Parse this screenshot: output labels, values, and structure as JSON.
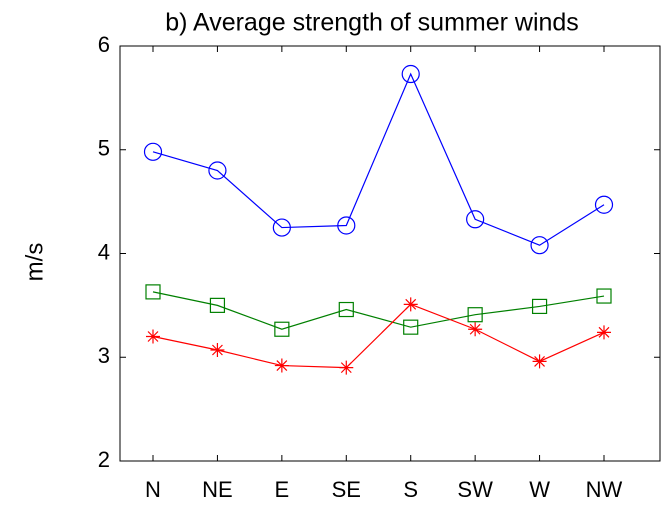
{
  "chart_data": {
    "type": "line",
    "title": "b) Average strength of summer winds",
    "y_label": "m/s",
    "categories": [
      "N",
      "NE",
      "E",
      "SE",
      "S",
      "SW",
      "W",
      "NW"
    ],
    "series": [
      {
        "color": "#0000ff",
        "marker": "circle",
        "values": [
          4.98,
          4.8,
          4.25,
          4.27,
          5.73,
          4.33,
          4.08,
          4.47
        ]
      },
      {
        "color": "#008000",
        "marker": "square",
        "values": [
          3.63,
          3.5,
          3.27,
          3.46,
          3.29,
          3.41,
          3.49,
          3.59
        ]
      },
      {
        "color": "#ff0000",
        "marker": "asterisk",
        "values": [
          3.2,
          3.07,
          2.92,
          2.9,
          3.51,
          3.27,
          2.96,
          3.24
        ]
      }
    ],
    "ylim": [
      2,
      6
    ],
    "yticks": [
      2,
      3,
      4,
      5,
      6
    ],
    "grid": false
  }
}
